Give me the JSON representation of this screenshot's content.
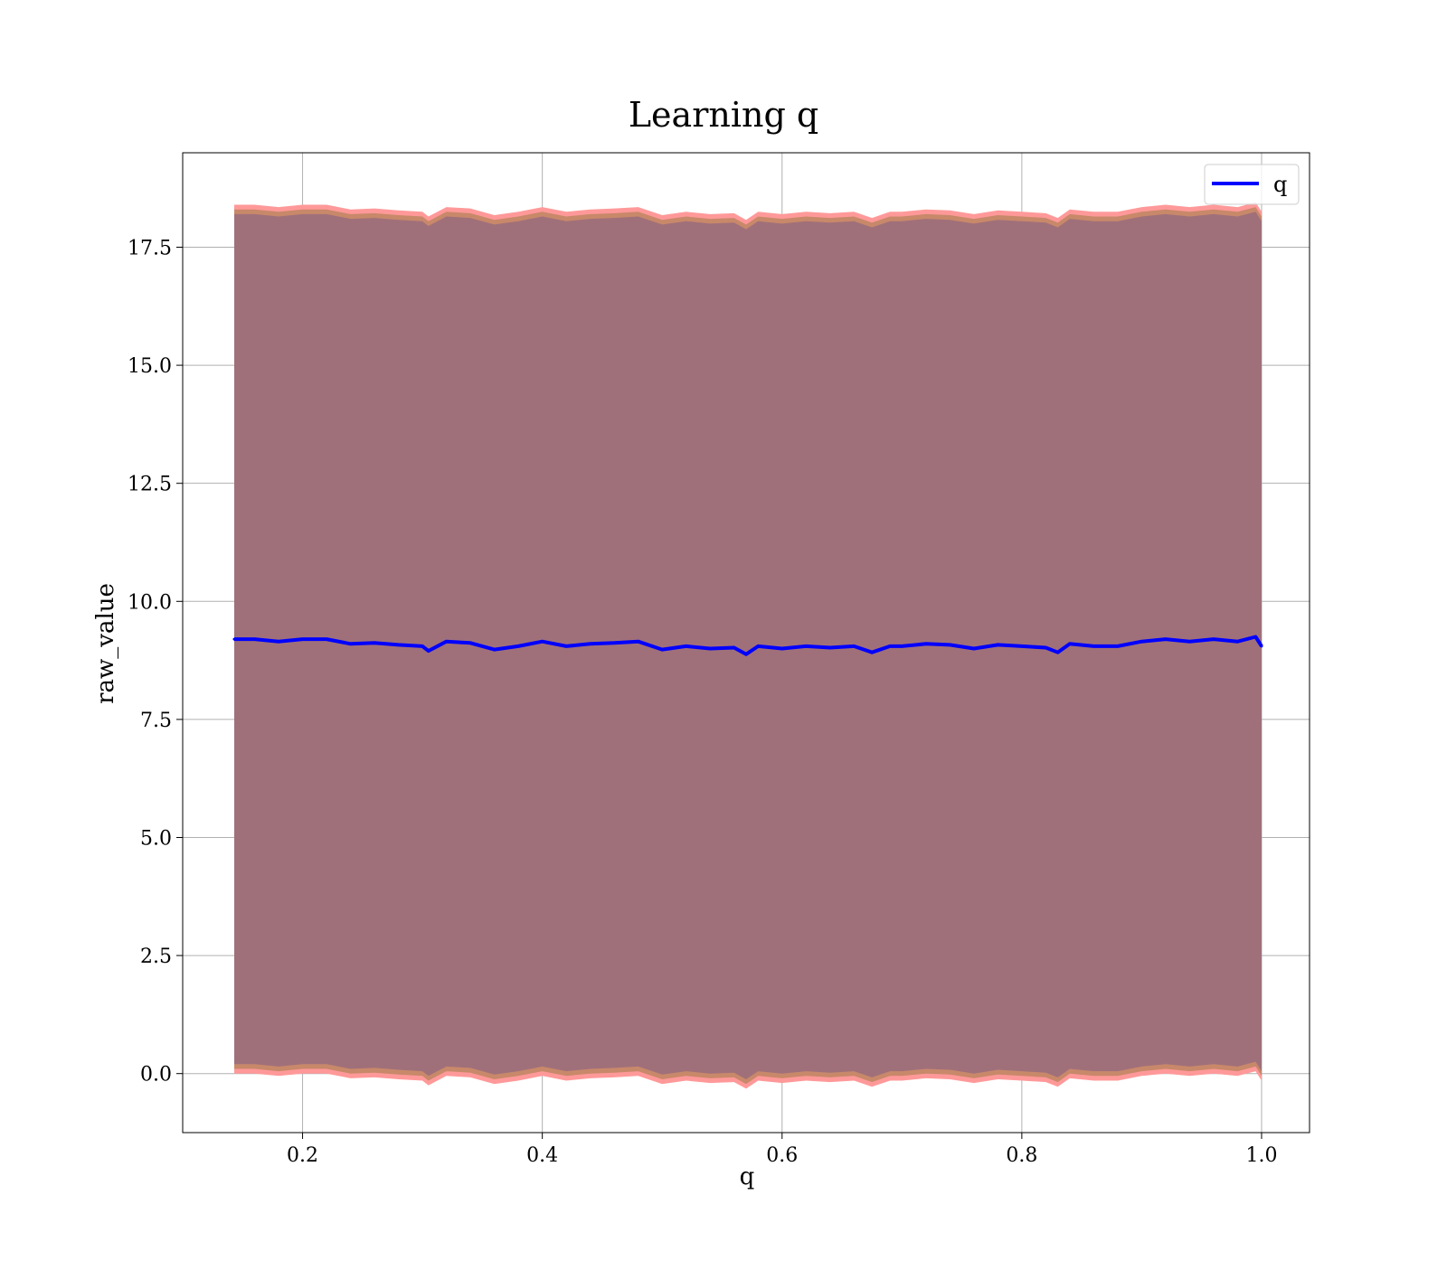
{
  "colors": {
    "line": "#0000ff",
    "band_outer": "#ff9999",
    "band_mid": "#c8886a",
    "band_inner": "#a0707a",
    "grid": "#b0b0b0",
    "axes": "#000000"
  },
  "chart_data": {
    "type": "line",
    "title": "Learning q",
    "xlabel": "q",
    "ylabel": "raw_value",
    "xlim": [
      0.1,
      1.04
    ],
    "ylim": [
      -1.25,
      19.5
    ],
    "xticks": [
      0.2,
      0.4,
      0.6,
      0.8,
      1.0
    ],
    "xtick_labels": [
      "0.2",
      "0.4",
      "0.6",
      "0.8",
      "1.0"
    ],
    "yticks": [
      0.0,
      2.5,
      5.0,
      7.5,
      10.0,
      12.5,
      15.0,
      17.5
    ],
    "ytick_labels": [
      "0.0",
      "2.5",
      "5.0",
      "7.5",
      "10.0",
      "12.5",
      "15.0",
      "17.5"
    ],
    "grid": true,
    "legend": {
      "position": "top-right",
      "entries": [
        "q"
      ]
    },
    "series": [
      {
        "name": "q",
        "x": [
          0.143,
          0.16,
          0.18,
          0.2,
          0.22,
          0.24,
          0.26,
          0.28,
          0.3,
          0.305,
          0.32,
          0.34,
          0.36,
          0.38,
          0.4,
          0.42,
          0.44,
          0.46,
          0.48,
          0.5,
          0.52,
          0.54,
          0.56,
          0.57,
          0.58,
          0.6,
          0.62,
          0.64,
          0.66,
          0.675,
          0.69,
          0.7,
          0.72,
          0.74,
          0.76,
          0.78,
          0.8,
          0.82,
          0.83,
          0.84,
          0.86,
          0.88,
          0.9,
          0.92,
          0.94,
          0.96,
          0.98,
          0.995,
          1.0
        ],
        "values": [
          9.2,
          9.2,
          9.15,
          9.2,
          9.2,
          9.1,
          9.12,
          9.08,
          9.05,
          8.95,
          9.15,
          9.12,
          8.98,
          9.05,
          9.15,
          9.05,
          9.1,
          9.12,
          9.15,
          8.98,
          9.05,
          9.0,
          9.02,
          8.88,
          9.05,
          9.0,
          9.05,
          9.02,
          9.05,
          8.92,
          9.05,
          9.05,
          9.1,
          9.08,
          9.0,
          9.08,
          9.05,
          9.02,
          8.92,
          9.1,
          9.05,
          9.05,
          9.15,
          9.2,
          9.15,
          9.2,
          9.15,
          9.25,
          9.05
        ]
      }
    ],
    "bands": [
      {
        "upper_offset": 9.2,
        "lower_offset": 9.2,
        "color_key": "band_outer"
      },
      {
        "upper_offset": 9.1,
        "lower_offset": 9.1,
        "color_key": "band_mid"
      },
      {
        "upper_offset": 9.0,
        "lower_offset": 9.0,
        "color_key": "band_inner"
      }
    ]
  }
}
